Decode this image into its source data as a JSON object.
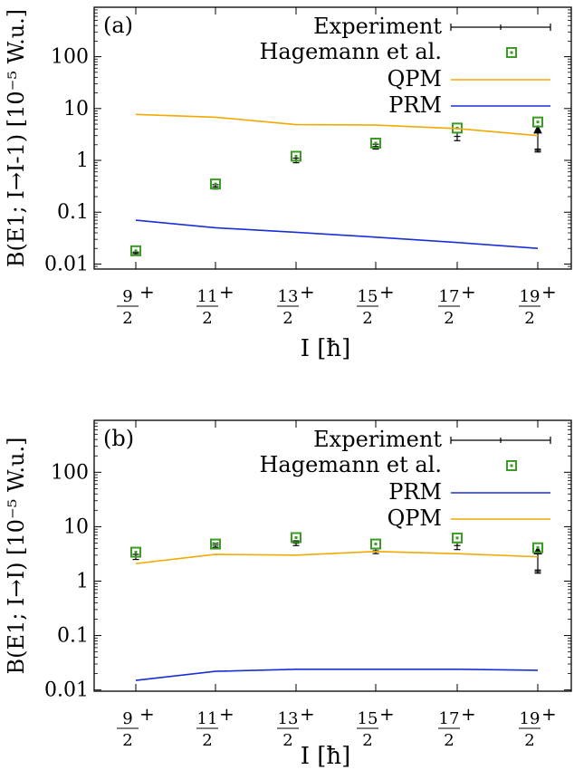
{
  "chart_data": [
    {
      "type": "scatter",
      "panel_label": "(a)",
      "ylabel": "B(E1; I→I-1) [10⁻⁵ W.u.]",
      "xlabel": "I [ħ]",
      "yscale": "log",
      "ylim": [
        0.008,
        900
      ],
      "yticks": [
        0.01,
        0.1,
        1,
        10,
        100
      ],
      "ytick_labels": [
        "0.01",
        "0.1",
        "1",
        "10",
        "100"
      ],
      "x_categories": [
        {
          "num": "9",
          "den": "2",
          "sup": "+"
        },
        {
          "num": "11",
          "den": "2",
          "sup": "+"
        },
        {
          "num": "13",
          "den": "2",
          "sup": "+"
        },
        {
          "num": "15",
          "den": "2",
          "sup": "+"
        },
        {
          "num": "17",
          "den": "2",
          "sup": "+"
        },
        {
          "num": "19",
          "den": "2",
          "sup": "+"
        }
      ],
      "legend_position": "top-right",
      "series": [
        {
          "name": "Experiment",
          "kind": "errorbar",
          "color": "#000000",
          "values": [
            0.016,
            0.31,
            1.0,
            1.85,
            2.9,
            1.55
          ],
          "err_low": [
            0.015,
            0.28,
            0.9,
            1.65,
            2.4,
            1.45
          ],
          "err_high": [
            0.017,
            0.34,
            1.1,
            2.05,
            3.4,
            1.65
          ],
          "lower_limit_arrow": [
            false,
            false,
            false,
            false,
            false,
            true
          ]
        },
        {
          "name": "Hagemann et al.",
          "kind": "markers",
          "color": "#3a9d23",
          "values": [
            0.018,
            0.35,
            1.2,
            2.15,
            4.2,
            5.5
          ]
        },
        {
          "name": "QPM",
          "kind": "line",
          "color": "#f2a900",
          "values": [
            7.7,
            6.8,
            4.9,
            4.8,
            4.1,
            3.0
          ]
        },
        {
          "name": "PRM",
          "kind": "line",
          "color": "#1a2ed8",
          "values": [
            0.07,
            0.05,
            0.041,
            0.033,
            0.026,
            0.02
          ]
        }
      ]
    },
    {
      "type": "scatter",
      "panel_label": "(b)",
      "ylabel": "B(E1; I→I) [10⁻⁵ W.u.]",
      "xlabel": "I [ħ]",
      "yscale": "log",
      "ylim": [
        0.0095,
        900
      ],
      "yticks": [
        0.01,
        0.1,
        1,
        10,
        100
      ],
      "ytick_labels": [
        "0.01",
        "0.1",
        "1",
        "10",
        "100"
      ],
      "x_categories": [
        {
          "num": "9",
          "den": "2",
          "sup": "+"
        },
        {
          "num": "11",
          "den": "2",
          "sup": "+"
        },
        {
          "num": "13",
          "den": "2",
          "sup": "+"
        },
        {
          "num": "15",
          "den": "2",
          "sup": "+"
        },
        {
          "num": "17",
          "den": "2",
          "sup": "+"
        },
        {
          "num": "19",
          "den": "2",
          "sup": "+"
        }
      ],
      "legend_position": "top-right",
      "series": [
        {
          "name": "Experiment",
          "kind": "errorbar",
          "color": "#000000",
          "values": [
            2.8,
            4.6,
            5.0,
            3.6,
            4.5,
            1.5
          ],
          "err_low": [
            2.5,
            4.2,
            4.5,
            3.2,
            3.8,
            1.4
          ],
          "err_high": [
            3.1,
            5.0,
            5.5,
            4.0,
            5.2,
            1.6
          ],
          "lower_limit_arrow": [
            false,
            false,
            false,
            false,
            false,
            true
          ]
        },
        {
          "name": "Hagemann et al.",
          "kind": "markers",
          "color": "#3a9d23",
          "values": [
            3.4,
            4.8,
            6.3,
            4.8,
            6.2,
            4.1
          ]
        },
        {
          "name": "PRM",
          "kind": "line",
          "color": "#1a2ed8",
          "values": [
            0.015,
            0.022,
            0.024,
            0.024,
            0.024,
            0.023
          ]
        },
        {
          "name": "QPM",
          "kind": "line",
          "color": "#f2a900",
          "values": [
            2.1,
            3.1,
            3.0,
            3.5,
            3.2,
            2.8
          ]
        }
      ]
    }
  ]
}
